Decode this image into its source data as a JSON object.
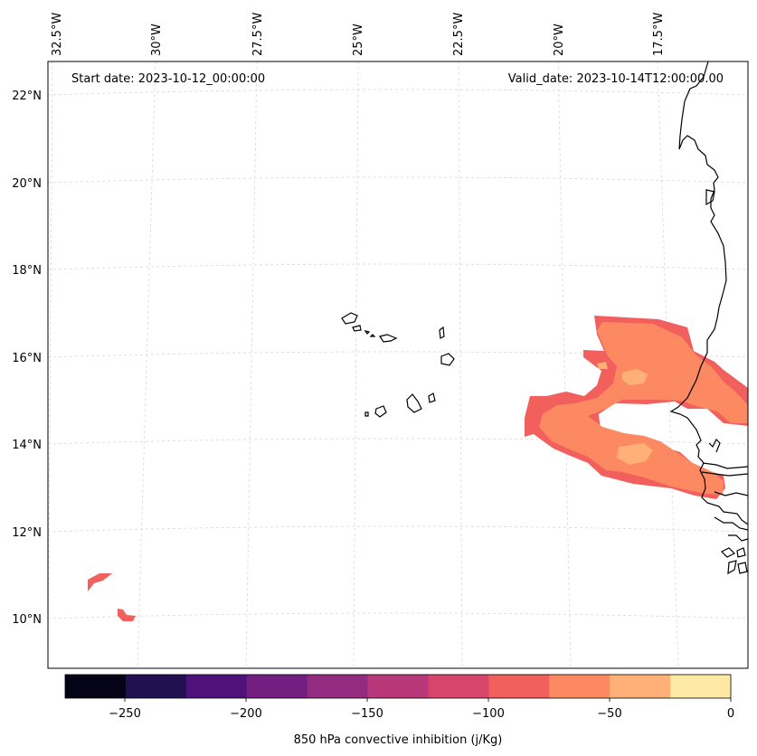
{
  "map": {
    "start_label": "Start date: 2023-10-12_00:00:00",
    "valid_label": "Valid_date: 2023-10-14T12:00:00.00",
    "lon_labels": [
      "32.5°W",
      "30°W",
      "27.5°W",
      "25°W",
      "22.5°W",
      "20°W",
      "17.5°W"
    ],
    "lat_labels": [
      "22°N",
      "20°N",
      "18°N",
      "16°N",
      "14°N",
      "12°N",
      "10°N"
    ]
  },
  "colorbar": {
    "label": "850 hPa convective inhibition (j/Kg)",
    "ticks": [
      "−250",
      "−200",
      "−150",
      "−100",
      "−50",
      "0"
    ],
    "colors": [
      "#050416",
      "#221150",
      "#4f127b",
      "#721f81",
      "#932b80",
      "#b73779",
      "#d8456c",
      "#f1605d",
      "#fc8961",
      "#feb078",
      "#fde9a4"
    ]
  },
  "colors": {
    "band_100_75": "#f1605d",
    "band_75_50": "#fc8961",
    "band_50_25": "#feb078"
  }
}
